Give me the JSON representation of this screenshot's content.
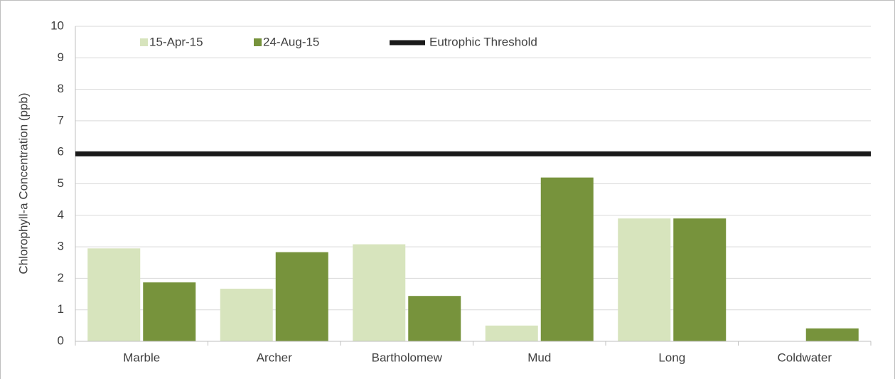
{
  "chart_data": {
    "type": "bar",
    "ylabel": "Chlorophyll-a Concentration (ppb)",
    "categories": [
      "Marble",
      "Archer",
      "Bartholomew",
      "Mud",
      "Long",
      "Coldwater"
    ],
    "series": [
      {
        "name": "15-Apr-15",
        "color": "#d7e4bd",
        "values": [
          2.95,
          1.67,
          3.08,
          0.5,
          3.9,
          0
        ]
      },
      {
        "name": "24-Aug-15",
        "color": "#77933c",
        "values": [
          1.87,
          2.83,
          1.44,
          5.2,
          3.9,
          0.41
        ]
      }
    ],
    "threshold": {
      "name": "Eutrophic Threshold",
      "value": 5.95,
      "color": "#1a1a1a"
    },
    "ylim": [
      0,
      10
    ],
    "yticks": [
      0,
      1,
      2,
      3,
      4,
      5,
      6,
      7,
      8,
      9,
      10
    ],
    "grid": true,
    "legend": "top"
  }
}
